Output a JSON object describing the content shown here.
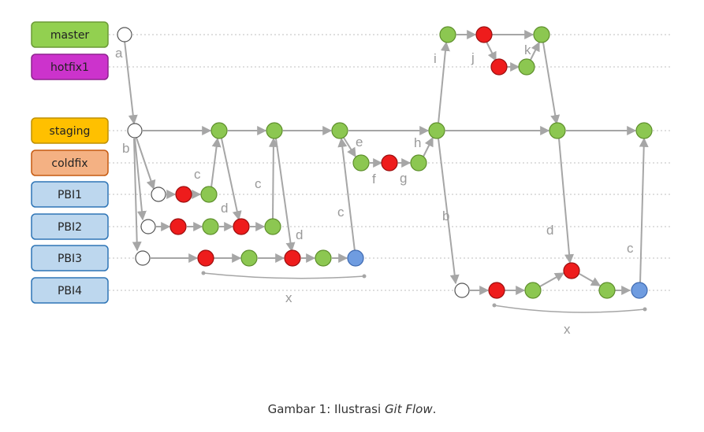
{
  "branches": {
    "master": "master",
    "hotfix1": "hotfix1",
    "staging": "staging",
    "coldfix": "coldfix",
    "pbi1": "PBI1",
    "pbi2": "PBI2",
    "pbi3": "PBI3",
    "pbi4": "PBI4"
  },
  "edge_labels": {
    "a": "a",
    "b": "b",
    "c": "c",
    "d": "d",
    "e": "e",
    "f": "f",
    "g": "g",
    "h": "h",
    "i": "i",
    "j": "j",
    "k": "k",
    "x": "x"
  },
  "caption": {
    "prefix": "Gambar 1: Ilustrasi ",
    "emphasis": "Git Flow",
    "suffix": "."
  },
  "colors": {
    "green": "#8cc751",
    "red": "#ee1c1c",
    "blue": "#6f9ce0",
    "white": "#ffffff",
    "arrow": "#a6a6a6",
    "master": "#92d050",
    "hotfix": "#cc33cc",
    "staging": "#ffc000",
    "coldfix": "#f4b183",
    "pbi": "#bdd7ee"
  }
}
